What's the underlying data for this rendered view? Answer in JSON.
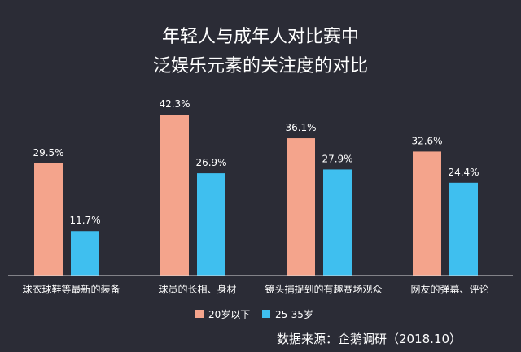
{
  "chart_data": {
    "type": "bar",
    "title_lines": [
      "年轻人与成年人对比赛中",
      "泛娱乐元素的关注度的对比"
    ],
    "categories": [
      "球衣球鞋等最新的装备",
      "球员的长相、身材",
      "镜头捕捉到的有趣赛场观众",
      "网友的弹幕、评论"
    ],
    "series": [
      {
        "name": "20岁以下",
        "color": "#f4a48c",
        "values": [
          29.5,
          42.3,
          36.1,
          32.6
        ],
        "labels": [
          "29.5%",
          "42.3%",
          "36.1%",
          "32.6%"
        ]
      },
      {
        "name": "25-35岁",
        "color": "#3fbfef",
        "values": [
          11.7,
          26.9,
          27.9,
          24.4
        ],
        "labels": [
          "11.7%",
          "26.9%",
          "27.9%",
          "24.4%"
        ]
      }
    ],
    "ylim": [
      0,
      45
    ],
    "grid": false,
    "legend": "bottom",
    "source": "数据来源：企鹅调研（2018.10）"
  },
  "colors": {
    "background": "#2b2c36",
    "axis": "#d9d9d9",
    "text": "#ffffff"
  }
}
